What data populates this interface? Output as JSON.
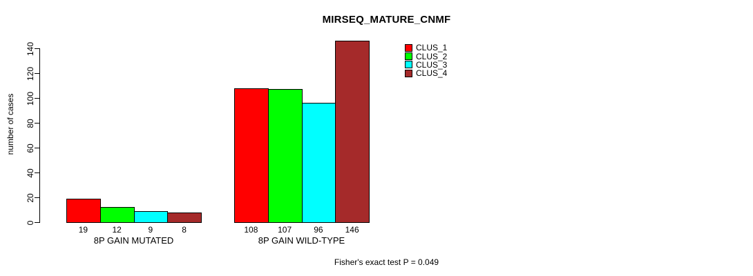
{
  "chart_data": {
    "type": "bar",
    "title": "MIRSEQ_MATURE_CNMF",
    "ylabel": "number of cases",
    "xlabel": "",
    "ylim": [
      0,
      140
    ],
    "yticks": [
      0,
      20,
      40,
      60,
      80,
      100,
      120,
      140
    ],
    "grid": false,
    "legend_position": "top-right",
    "categories": [
      "8P GAIN MUTATED",
      "8P GAIN WILD-TYPE"
    ],
    "series": [
      {
        "name": "CLUS_1",
        "color": "#FF0000",
        "values": [
          19,
          108
        ]
      },
      {
        "name": "CLUS_2",
        "color": "#00FF00",
        "values": [
          12,
          107
        ]
      },
      {
        "name": "CLUS_3",
        "color": "#00FFFF",
        "values": [
          9,
          96
        ]
      },
      {
        "name": "CLUS_4",
        "color": "#A52A2A",
        "values": [
          8,
          146
        ]
      }
    ],
    "annotation": "Fisher's exact test P = 0.049"
  }
}
